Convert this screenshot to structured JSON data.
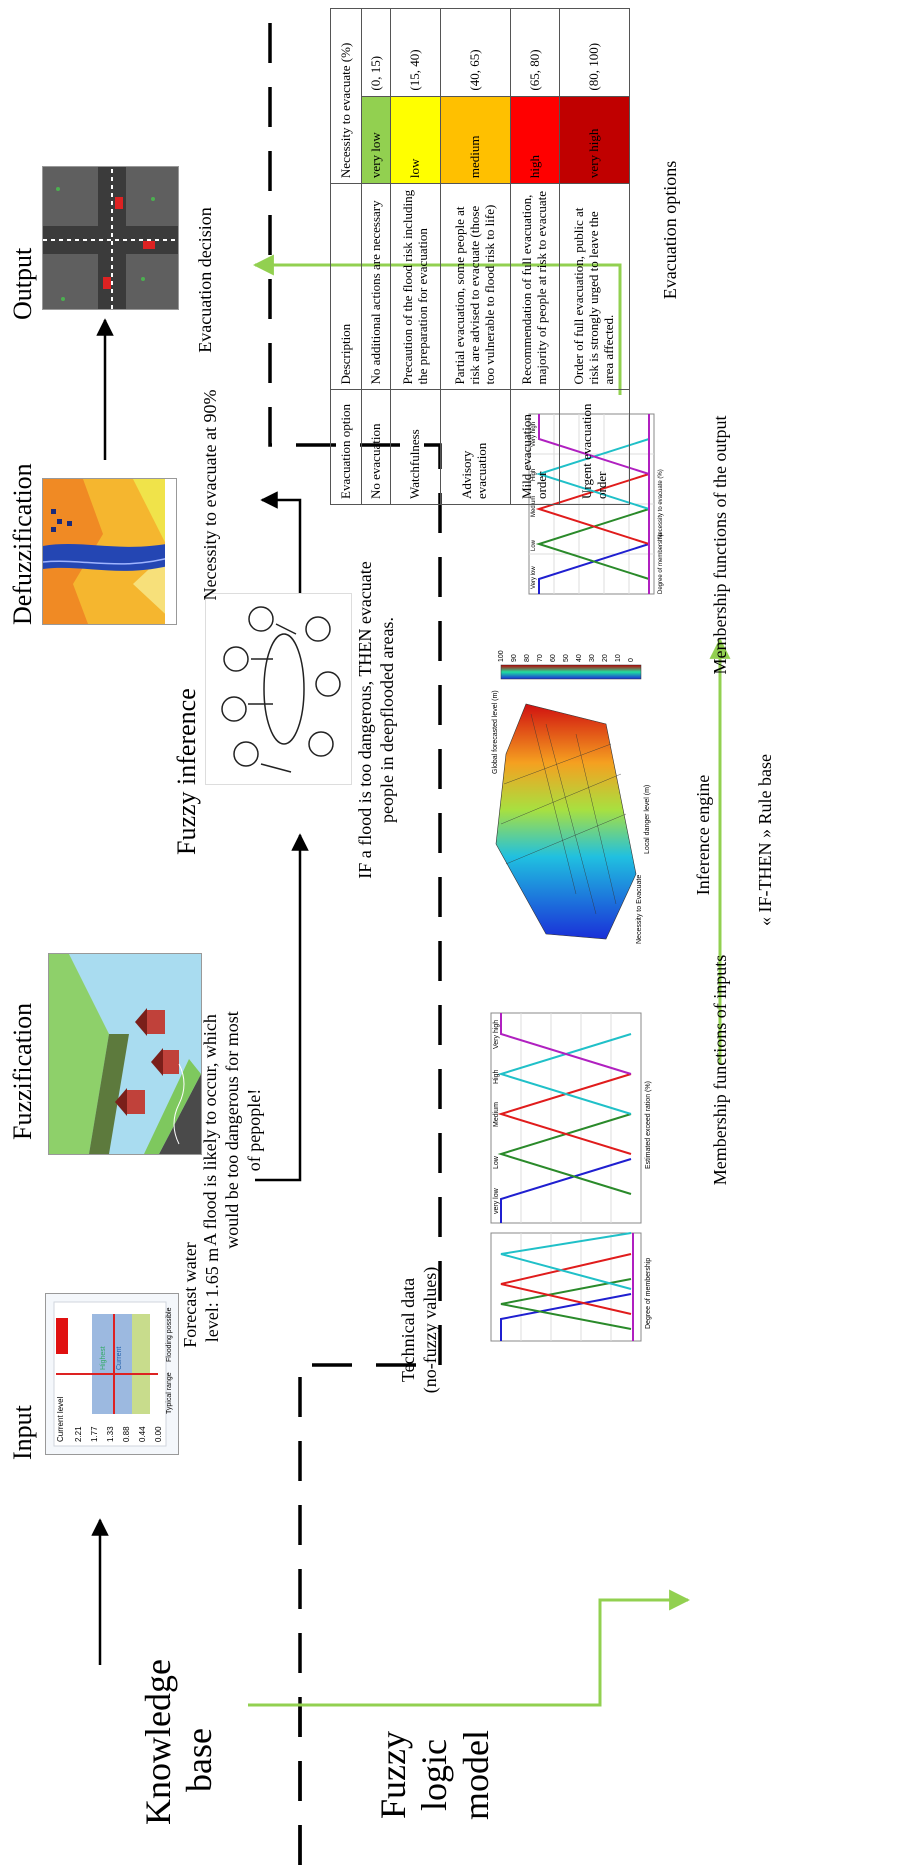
{
  "left_labels": {
    "knowledge_base": "Knowledge base",
    "fuzzy_logic_model": "Fuzzy logic model"
  },
  "stages": {
    "input": "Input",
    "fuzzification": "Fuzzification",
    "fuzzy_inference": "Fuzzy inference",
    "defuzzification": "Defuzzification",
    "output": "Output"
  },
  "captions": {
    "forecast": [
      "Forecast water",
      "level: 1.65 m"
    ],
    "flood_likely": [
      "A flood is likely to occur, which",
      "would be too dangerous for most",
      "of pepople!"
    ],
    "if_rule": [
      "IF a flood is too dangerous, THEN evacuate",
      "people in deepflooded areas."
    ],
    "necessity": "Necessity to evacuate at 90%",
    "decision": "Evacuation decision",
    "technical": [
      "Technical data",
      "(no-fuzzy values)"
    ],
    "mf_inputs": "Membership functions of inputs",
    "inference_engine": "Inference engine",
    "rule_base": "« IF-THEN » Rule base",
    "mf_output": "Membership functions of the output",
    "evac_options": "Evacuation options"
  },
  "thumb_text": {
    "input_badge": "Current level",
    "input_ticks": [
      "2.21",
      "1.77",
      "1.33",
      "0.88",
      "0.44",
      "0.00"
    ],
    "input_legend": [
      "Typical range",
      "Flooding possible"
    ],
    "input_marks": [
      "Highest",
      "Current"
    ],
    "mf_input_labels": [
      "very low",
      "Low",
      "Medium",
      "High",
      "Very high"
    ],
    "mf_input_axis": "Estimated exceed ration (%)",
    "mf_input_yaxis": "Degree of membership",
    "mf_output_labels": [
      "Very low",
      "Low",
      "Medium",
      "High",
      "Very high"
    ],
    "mf_output_axis": "Necessity to evacuate (%)",
    "mf_output_yaxis": "Degree of membership",
    "surface_zaxis": "Necessity to Evacuate",
    "surface_xaxis": "Local danger level (m)",
    "surface_yaxis": "Global forecasted level (m)",
    "surface_scale": [
      "100",
      "90",
      "80",
      "70",
      "60",
      "50",
      "40",
      "30",
      "20",
      "10",
      "0"
    ]
  },
  "table": {
    "headers": [
      "Evacuation option",
      "Description",
      "Necessity to evacuate (%)"
    ],
    "rows": [
      {
        "option": "No evacuation",
        "description": "No additional actions are necessary",
        "level": "very low",
        "range": "(0, 15)",
        "color": "#92d050"
      },
      {
        "option": "Watchfulness",
        "description": "Precaution of the flood risk including the preparation for evacuation",
        "level": "low",
        "range": "(15, 40)",
        "color": "#ffff00"
      },
      {
        "option": "Advisory evacuation",
        "description": "Partial evacuation, some people at risk are advised to evacuate (those too vulnerable to flood risk to life)",
        "level": "medium",
        "range": "(40, 65)",
        "color": "#ffc000"
      },
      {
        "option": "Mild evacuation order",
        "description": "Recommendation of full evacuation, majority of people at risk to evacuate",
        "level": "high",
        "range": "(65, 80)",
        "color": "#ff0000"
      },
      {
        "option": "Urgent evacuation order",
        "description": "Order of full evacuation, public at risk is strongly urged to leave the area affected.",
        "level": "very high",
        "range": "(80, 100)",
        "color": "#c00000"
      }
    ]
  },
  "colors": {
    "arrow_green": "#92d050",
    "arrow_black": "#000000"
  }
}
